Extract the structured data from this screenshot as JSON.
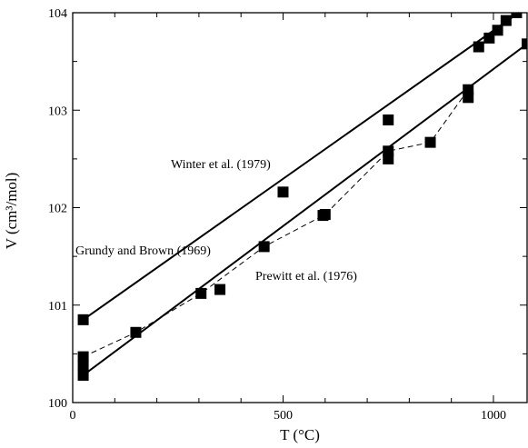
{
  "chart_data": {
    "type": "scatter",
    "xlabel": "T (°C)",
    "ylabel": "V (cm³/mol)",
    "xlim": [
      0,
      1080
    ],
    "ylim": [
      100,
      104
    ],
    "xticks": [
      0,
      500,
      1000
    ],
    "yticks": [
      100,
      101,
      102,
      103,
      104
    ],
    "grid": false,
    "annotations": [
      "Winter et al. (1979)",
      "Grundy and Brown (1969)",
      "Prewitt et al. (1976)"
    ],
    "series": [
      {
        "name": "Winter et al. (1979)",
        "marker": "square",
        "line": "solid",
        "x": [
          25,
          500,
          750,
          965,
          990,
          1010,
          1030,
          1055
        ],
        "y": [
          100.85,
          102.16,
          102.9,
          103.65,
          103.74,
          103.82,
          103.92,
          104.0
        ]
      },
      {
        "name": "Grundy and Brown (1969)",
        "marker": "square",
        "line": "dashed",
        "x": [
          25,
          150,
          305,
          455,
          600,
          750,
          850,
          940
        ],
        "y": [
          100.47,
          100.72,
          101.12,
          101.6,
          101.93,
          102.58,
          102.67,
          103.21
        ]
      },
      {
        "name": "Prewitt et al. (1976)",
        "marker": "square",
        "line": "solid",
        "x": [
          25,
          25,
          350,
          595,
          750,
          940,
          1080
        ],
        "y": [
          100.28,
          100.38,
          101.16,
          101.92,
          102.5,
          103.13,
          103.68
        ]
      }
    ],
    "fit_lines": [
      {
        "series": "Winter et al. (1979)",
        "x": [
          25,
          1060
        ],
        "y": [
          100.85,
          104.0
        ]
      },
      {
        "series": "Prewitt et al. (1976)",
        "x": [
          25,
          1080
        ],
        "y": [
          100.28,
          103.68
        ]
      }
    ],
    "dashed_connector": {
      "series": "Grundy and Brown (1969)",
      "x": [
        25,
        150,
        305,
        455,
        600,
        750,
        850,
        940
      ],
      "y": [
        100.47,
        100.72,
        101.12,
        101.6,
        101.93,
        102.58,
        102.67,
        103.21
      ]
    }
  }
}
